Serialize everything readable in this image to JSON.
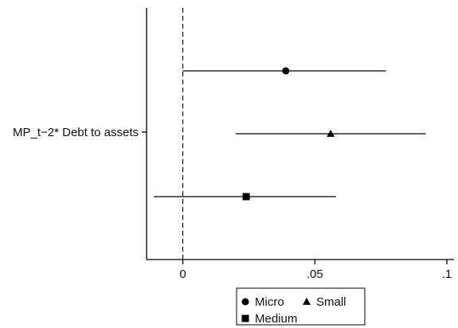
{
  "chart_data": {
    "type": "coefficient_plot",
    "y_category": "MP_t−2* Debt to assets",
    "xlim": [
      -0.014,
      0.102
    ],
    "x_ticks": [
      {
        "value": 0,
        "label": "0"
      },
      {
        "value": 0.05,
        "label": ".05"
      },
      {
        "value": 0.1,
        "label": ".1"
      }
    ],
    "reference_line": {
      "x": 0,
      "style": "dashed"
    },
    "grid": false,
    "legend_position": "bottom",
    "series": [
      {
        "name": "Micro",
        "marker": "circle",
        "estimate": 0.039,
        "ci_low": 0.0,
        "ci_high": 0.077
      },
      {
        "name": "Small",
        "marker": "triangle",
        "estimate": 0.056,
        "ci_low": 0.02,
        "ci_high": 0.092
      },
      {
        "name": "Medium",
        "marker": "square",
        "estimate": 0.024,
        "ci_low": -0.011,
        "ci_high": 0.058
      }
    ]
  }
}
